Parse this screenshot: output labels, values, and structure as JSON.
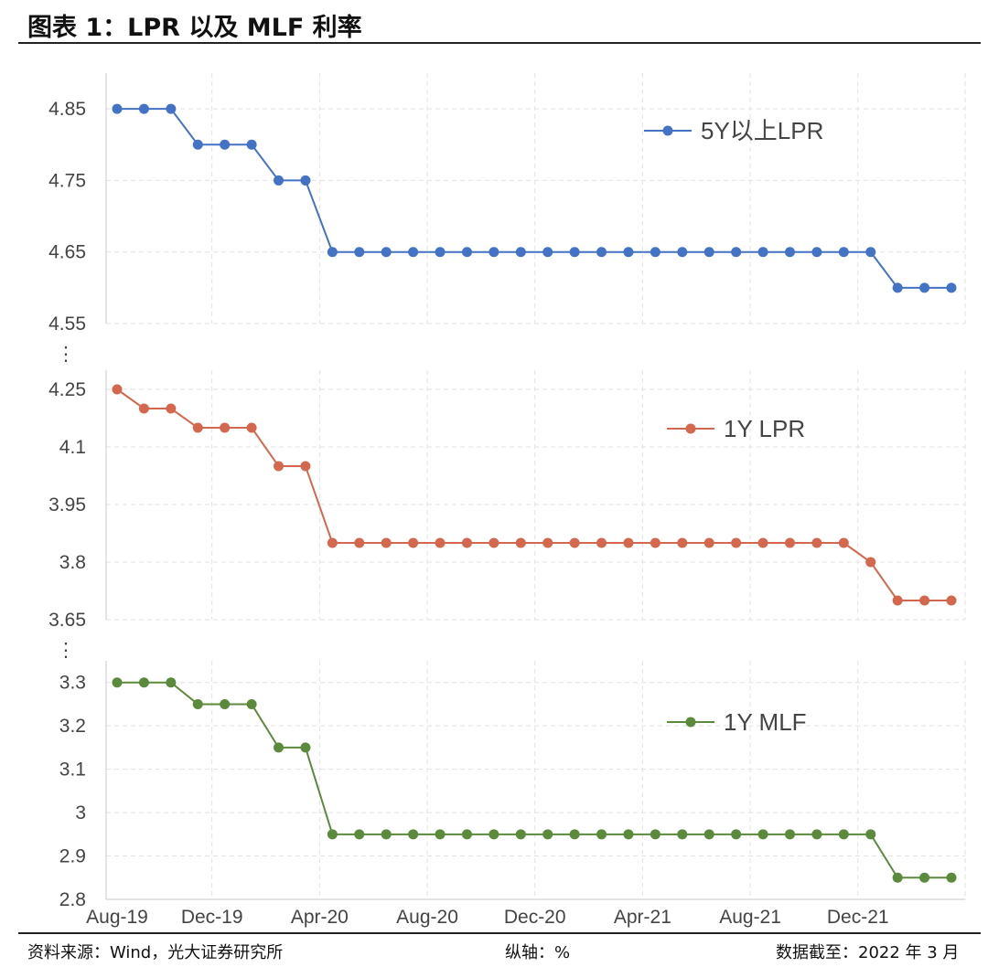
{
  "header": {
    "title": "图表 1：LPR 以及 MLF 利率"
  },
  "footer": {
    "source": "资料来源：Wind，光大证券研究所",
    "axis_note": "纵轴：%",
    "data_date": "数据截至：2022 年 3 月"
  },
  "chart_data": {
    "type": "line",
    "x": [
      "Aug-19",
      "Sep-19",
      "Oct-19",
      "Nov-19",
      "Dec-19",
      "Jan-20",
      "Feb-20",
      "Mar-20",
      "Apr-20",
      "May-20",
      "Jun-20",
      "Jul-20",
      "Aug-20",
      "Sep-20",
      "Oct-20",
      "Nov-20",
      "Dec-20",
      "Jan-21",
      "Feb-21",
      "Mar-21",
      "Apr-21",
      "May-21",
      "Jun-21",
      "Jul-21",
      "Aug-21",
      "Sep-21",
      "Oct-21",
      "Nov-21",
      "Dec-21",
      "Jan-22",
      "Feb-22",
      "Mar-22"
    ],
    "x_tick_labels": [
      "Aug-19",
      "Dec-19",
      "Apr-20",
      "Aug-20",
      "Dec-20",
      "Apr-21",
      "Aug-21",
      "Dec-21"
    ],
    "panels": [
      {
        "series": [
          {
            "name": "5Y以上LPR",
            "color": "#4472c4",
            "values": [
              4.85,
              4.85,
              4.85,
              4.8,
              4.8,
              4.8,
              4.75,
              4.75,
              4.65,
              4.65,
              4.65,
              4.65,
              4.65,
              4.65,
              4.65,
              4.65,
              4.65,
              4.65,
              4.65,
              4.65,
              4.65,
              4.65,
              4.65,
              4.65,
              4.65,
              4.65,
              4.65,
              4.65,
              4.65,
              4.6,
              4.6,
              4.6
            ]
          }
        ],
        "ylim": [
          4.55,
          4.9
        ],
        "yticks": [
          "4.85",
          "4.75",
          "4.65",
          "4.55"
        ]
      },
      {
        "series": [
          {
            "name": "1Y LPR",
            "color": "#d4684f",
            "values": [
              4.25,
              4.2,
              4.2,
              4.15,
              4.15,
              4.15,
              4.05,
              4.05,
              3.85,
              3.85,
              3.85,
              3.85,
              3.85,
              3.85,
              3.85,
              3.85,
              3.85,
              3.85,
              3.85,
              3.85,
              3.85,
              3.85,
              3.85,
              3.85,
              3.85,
              3.85,
              3.85,
              3.85,
              3.8,
              3.7,
              3.7,
              3.7
            ]
          }
        ],
        "ylim": [
          3.65,
          4.3
        ],
        "yticks": [
          "4.25",
          "4.1",
          "3.95",
          "3.8",
          "3.65"
        ]
      },
      {
        "series": [
          {
            "name": "1Y MLF",
            "color": "#5b8a3c",
            "values": [
              3.3,
              3.3,
              3.3,
              3.25,
              3.25,
              3.25,
              3.15,
              3.15,
              2.95,
              2.95,
              2.95,
              2.95,
              2.95,
              2.95,
              2.95,
              2.95,
              2.95,
              2.95,
              2.95,
              2.95,
              2.95,
              2.95,
              2.95,
              2.95,
              2.95,
              2.95,
              2.95,
              2.95,
              2.95,
              2.85,
              2.85,
              2.85
            ]
          }
        ],
        "ylim": [
          2.8,
          3.35
        ],
        "yticks": [
          "3.3",
          "3.2",
          "3.1",
          "3",
          "2.9",
          "2.8"
        ]
      }
    ],
    "axis_break_marker": "⋮",
    "grid": true
  }
}
